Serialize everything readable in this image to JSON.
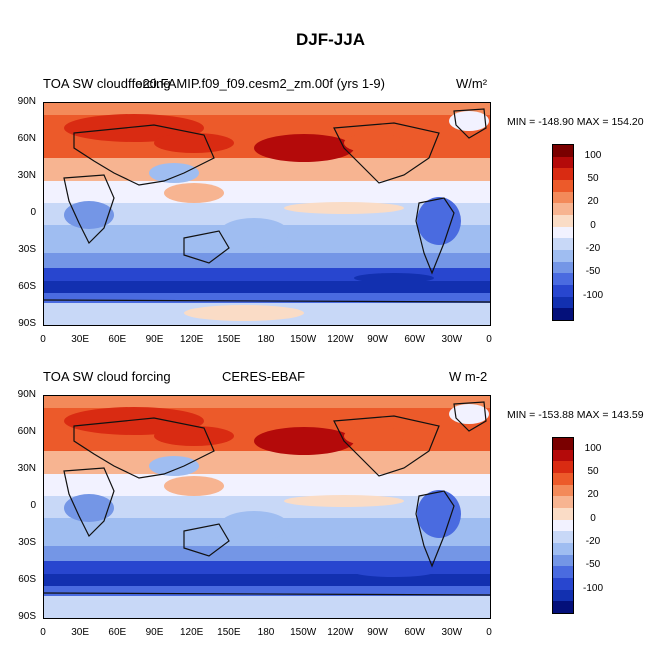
{
  "figure_title": "DJF-JJA",
  "panels": [
    {
      "left_title": "TOA SW cloud forcing",
      "center_title": "f.e20.FAMIP.f09_f09.cesm2_zm.00f (yrs 1-9)",
      "units": "W/m²",
      "stats": "MIN = -148.90 MAX = 154.20"
    },
    {
      "left_title": "TOA SW cloud forcing",
      "center_title": "CERES-EBAF",
      "units": "W m-2",
      "stats": "MIN = -153.88 MAX = 143.59"
    }
  ],
  "lat_labels": [
    "90N",
    "60N",
    "30N",
    "0",
    "30S",
    "60S",
    "90S"
  ],
  "lon_labels": [
    "0",
    "30E",
    "60E",
    "90E",
    "120E",
    "150E",
    "180",
    "150W",
    "120W",
    "90W",
    "60W",
    "30W",
    "0"
  ],
  "colorbar": {
    "labels": [
      "100",
      "50",
      "20",
      "0",
      "-20",
      "-50",
      "-100"
    ],
    "colors": [
      "#7a0000",
      "#b40a0a",
      "#d92b12",
      "#ec5a2a",
      "#f38a5a",
      "#f7b491",
      "#fadcc6",
      "#f2f2ff",
      "#c8d8f7",
      "#9fbdf1",
      "#7496e6",
      "#4a6be0",
      "#2846cf",
      "#1230b0",
      "#04107a"
    ]
  },
  "chart_data": {
    "type": "heatmap",
    "title": "DJF-JJA",
    "variable": "TOA SW cloud forcing",
    "xlabel": "",
    "ylabel": "",
    "x_ticks": [
      "0",
      "30E",
      "60E",
      "90E",
      "120E",
      "150E",
      "180",
      "150W",
      "120W",
      "90W",
      "60W",
      "30W",
      "0"
    ],
    "y_ticks": [
      "90N",
      "60N",
      "30N",
      "0",
      "30S",
      "60S",
      "90S"
    ],
    "contour_levels": [
      -100,
      -50,
      -20,
      0,
      20,
      50,
      100
    ],
    "series": [
      {
        "name": "f.e20.FAMIP.f09_f09.cesm2_zm.00f (yrs 1-9)",
        "min": -148.9,
        "max": 154.2
      },
      {
        "name": "CERES-EBAF",
        "min": -153.88,
        "max": 143.59
      }
    ]
  }
}
